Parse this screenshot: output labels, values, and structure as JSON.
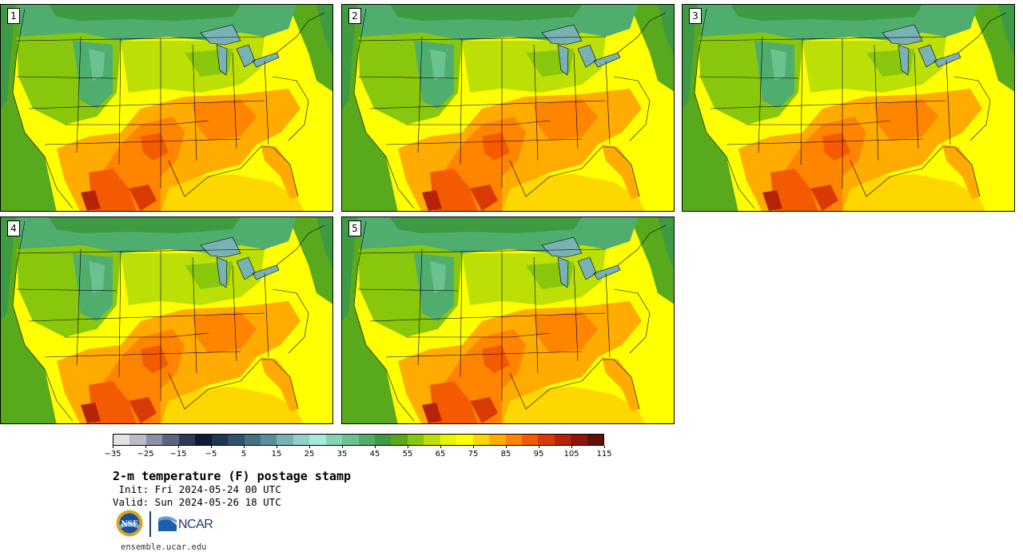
{
  "panels": [
    {
      "label": "1"
    },
    {
      "label": "2"
    },
    {
      "label": "3"
    },
    {
      "label": "4"
    },
    {
      "label": "5"
    }
  ],
  "colorbar": {
    "colors": [
      "#e2e2e2",
      "#b9bcc6",
      "#8b91a4",
      "#5b6580",
      "#2c3a57",
      "#0e1a33",
      "#1e3554",
      "#31526e",
      "#457182",
      "#5b8f9a",
      "#78b2b4",
      "#93cfc8",
      "#a6eadc",
      "#86d5b1",
      "#6cc191",
      "#4fad6d",
      "#3e9a43",
      "#58aa1c",
      "#89c70c",
      "#bce006",
      "#e8f500",
      "#ffff00",
      "#ffd700",
      "#ffab00",
      "#ff8400",
      "#f45b00",
      "#d83a04",
      "#b52307",
      "#8e150c",
      "#5f1008"
    ],
    "ticks": [
      "−35",
      "−25",
      "−15",
      "−5",
      "5",
      "15",
      "25",
      "35",
      "45",
      "55",
      "65",
      "75",
      "85",
      "95",
      "105",
      "115"
    ]
  },
  "title": "2-m temperature (F) postage stamp",
  "init": " Init: Fri 2024-05-24 00 UTC",
  "valid": "Valid: Sun 2024-05-26 18 UTC",
  "logos": {
    "nsf": "NSF",
    "ncar": "NCAR"
  },
  "footer": "ensemble.ucar.edu"
}
